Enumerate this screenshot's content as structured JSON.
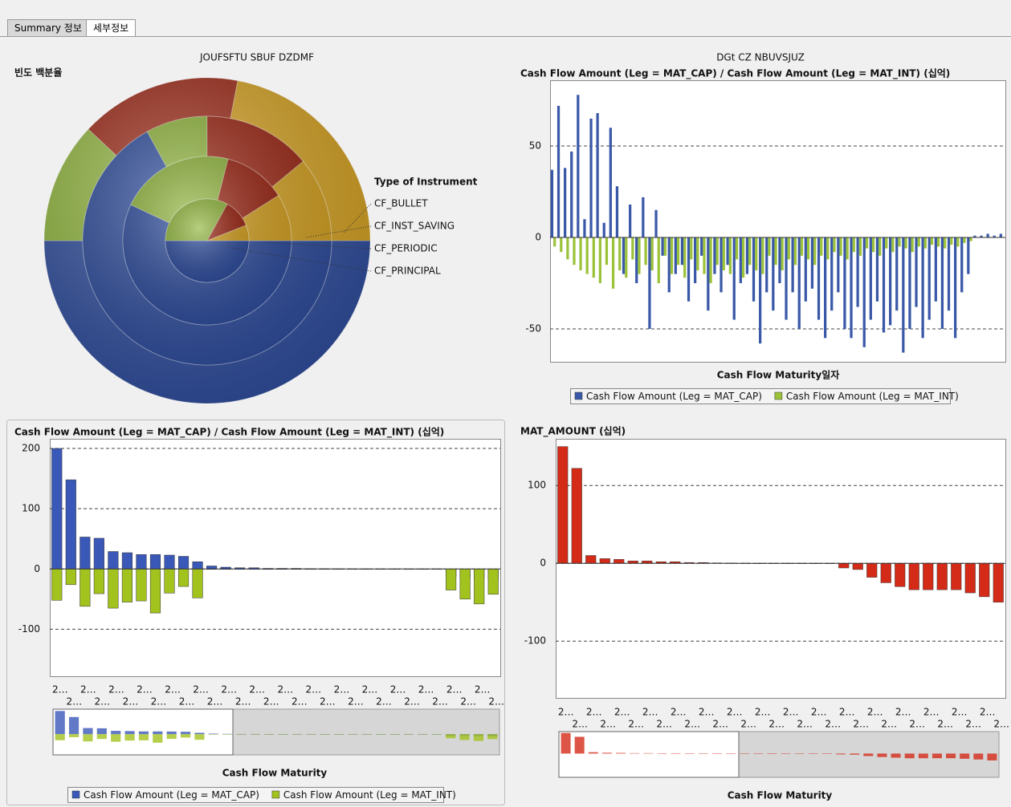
{
  "tabs": [
    "Summary 정보",
    "세부정보"
  ],
  "chart_data": [
    {
      "type": "pie",
      "title": "JOUFSFTU SBUF DZDMF",
      "subtitle": "빈도 백분율",
      "legend_title": "Type of Instrument",
      "colors": [
        "#2f4d9c",
        "#8fb43c",
        "#9a2614",
        "#d3a021"
      ],
      "rings": [
        {
          "name": "CF_BULLET",
          "values": [
            50,
            12,
            16,
            22
          ]
        },
        {
          "name": "CF_INST_SAVING",
          "values": [
            67,
            8,
            14,
            11
          ]
        },
        {
          "name": "CF_PERIODIC",
          "values": [
            57,
            22,
            12,
            9
          ]
        },
        {
          "name": "CF_PRINCIPAL",
          "values": [
            50,
            33,
            11,
            6
          ]
        }
      ]
    },
    {
      "type": "bar",
      "title": "DGt CZ NBUVSJUZ",
      "subtitle": "Cash Flow Amount (Leg = MAT_CAP) / Cash Flow Amount (Leg = MAT_INT) (십억)",
      "x_label": "Cash Flow Maturity일자",
      "ylim": [
        -68,
        86
      ],
      "yticks": [
        -50,
        0,
        50
      ],
      "grid": true,
      "series": [
        {
          "name": "Cash Flow Amount (Leg = MAT_CAP)",
          "color": "#3a58a8",
          "values": [
            37,
            72,
            38,
            47,
            78,
            10,
            65,
            68,
            8,
            60,
            28,
            -20,
            18,
            -25,
            22,
            -50,
            15,
            -10,
            -30,
            -20,
            -15,
            -35,
            -25,
            -10,
            -40,
            -20,
            -30,
            -15,
            -45,
            -25,
            -20,
            -35,
            -58,
            -30,
            -40,
            -25,
            -45,
            -30,
            -50,
            -35,
            -28,
            -45,
            -55,
            -40,
            -30,
            -50,
            -55,
            -38,
            -60,
            -45,
            -35,
            -52,
            -48,
            -40,
            -63,
            -50,
            -38,
            -55,
            -45,
            -35,
            -50,
            -40,
            -55,
            -30,
            -20,
            1,
            1,
            2,
            1,
            2
          ]
        },
        {
          "name": "Cash Flow Amount (Leg = MAT_INT)",
          "color": "#9cc23a",
          "values": [
            -5,
            -8,
            -12,
            -15,
            -18,
            -20,
            -22,
            -25,
            -15,
            -28,
            -18,
            -22,
            -12,
            -20,
            -15,
            -18,
            -25,
            -10,
            -20,
            -15,
            -22,
            -12,
            -18,
            -20,
            -25,
            -15,
            -18,
            -20,
            -12,
            -22,
            -15,
            -18,
            -20,
            -10,
            -15,
            -18,
            -12,
            -15,
            -10,
            -12,
            -15,
            -10,
            -12,
            -8,
            -10,
            -12,
            -8,
            -10,
            -6,
            -8,
            -10,
            -6,
            -8,
            -5,
            -6,
            -8,
            -5,
            -6,
            -4,
            -5,
            -6,
            -4,
            -5,
            -3,
            -2,
            0,
            0,
            0,
            0,
            0
          ]
        }
      ]
    },
    {
      "type": "bar",
      "subtitle": "Cash Flow Amount (Leg = MAT_CAP) / Cash Flow Amount (Leg = MAT_INT) (십억)",
      "x_label": "Cash Flow Maturity",
      "ylim": [
        -178,
        216
      ],
      "yticks": [
        -100,
        0,
        100,
        200
      ],
      "grid": true,
      "categories": [
        "2…",
        "2…",
        "2…",
        "2…",
        "2…",
        "2…",
        "2…",
        "2…",
        "2…",
        "2…",
        "2…",
        "2…",
        "2…",
        "2…",
        "2…",
        "2…",
        "2…",
        "2…",
        "2…",
        "2…",
        "2…",
        "2…",
        "2…",
        "2…",
        "2…",
        "2…",
        "2…",
        "2…",
        "2…",
        "2…",
        "2…",
        "2…"
      ],
      "series": [
        {
          "name": "Cash Flow Amount (Leg = MAT_CAP)",
          "color": "#3a58b8",
          "values": [
            200,
            148,
            53,
            51,
            29,
            27,
            24,
            24,
            23,
            21,
            12,
            5,
            3,
            2,
            2,
            1,
            1,
            1,
            0.5,
            0.4,
            0.3,
            0.2,
            0.2,
            0.1,
            0.1,
            0.1,
            0.1,
            0.1,
            -13,
            -15,
            -15,
            -17
          ]
        },
        {
          "name": "Cash Flow Amount (Leg = MAT_INT)",
          "color": "#a2c21e",
          "values": [
            -52,
            -26,
            -62,
            -41,
            -65,
            -55,
            -53,
            -73,
            -40,
            -29,
            -48,
            0,
            0,
            0,
            0,
            0,
            0,
            0,
            0,
            0,
            0,
            0,
            0,
            0,
            0,
            0,
            0,
            0,
            -35,
            -50,
            -58,
            -42
          ]
        }
      ]
    },
    {
      "type": "bar",
      "subtitle": "MAT_AMOUNT (십억)",
      "x_label": "Cash Flow Maturity",
      "ylim": [
        -173,
        160
      ],
      "yticks": [
        -100,
        0,
        100
      ],
      "grid": true,
      "categories": [
        "2…",
        "2…",
        "2…",
        "2…",
        "2…",
        "2…",
        "2…",
        "2…",
        "2…",
        "2…",
        "2…",
        "2…",
        "2…",
        "2…",
        "2…",
        "2…",
        "2…",
        "2…",
        "2…",
        "2…",
        "2…",
        "2…",
        "2…",
        "2…",
        "2…",
        "2…",
        "2…",
        "2…",
        "2…",
        "2…",
        "2…",
        "2…"
      ],
      "series": [
        {
          "name": "MAT_AMOUNT",
          "color": "#d42a18",
          "values": [
            150,
            122,
            10,
            6,
            5,
            3,
            3,
            2,
            2,
            1,
            1,
            0.5,
            0.3,
            0.2,
            0.1,
            0.1,
            0.1,
            0.1,
            0.1,
            0.1,
            -6,
            -8,
            -18,
            -25,
            -30,
            -34,
            -34,
            -34,
            -34,
            -38,
            -43,
            -50
          ]
        }
      ]
    }
  ]
}
